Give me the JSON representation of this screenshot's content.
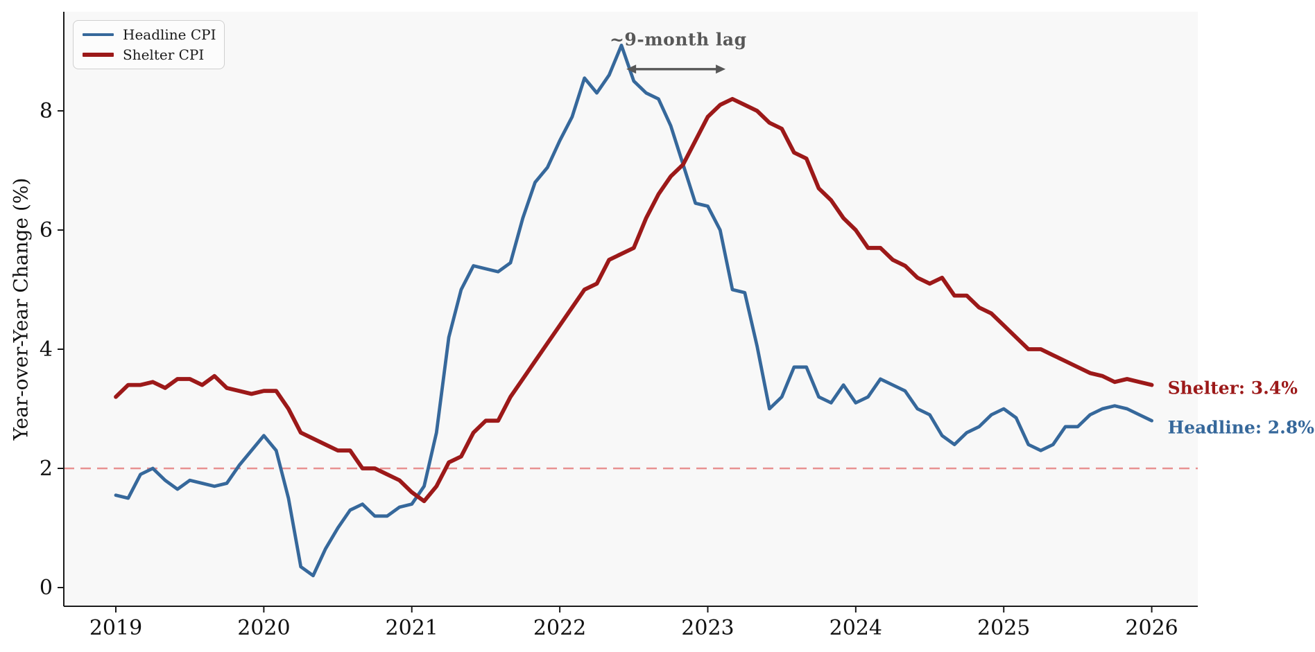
{
  "figure": {
    "background": "#ffffff",
    "plot_background": "#f8f8f8"
  },
  "colors": {
    "headline": "#36689b",
    "shelter": "#9c1919",
    "target_line": "#e89191",
    "annotation": "#575757",
    "axis": "#1a1a1a",
    "tick_text": "#111111"
  },
  "y_axis": {
    "label": "Year-over-Year Change (%)",
    "ticks": [
      "0",
      "2",
      "4",
      "6",
      "8"
    ]
  },
  "x_axis": {
    "ticks": [
      "2019",
      "2020",
      "2021",
      "2022",
      "2023",
      "2024",
      "2025",
      "2026"
    ]
  },
  "legend": {
    "items": [
      {
        "label": "Headline CPI",
        "series": "headline"
      },
      {
        "label": "Shelter CPI",
        "series": "shelter"
      }
    ]
  },
  "annotation": {
    "text": "~9-month lag"
  },
  "end_labels": [
    {
      "text": "Shelter: 3.4%",
      "series": "shelter"
    },
    {
      "text": "Headline: 2.8%",
      "series": "headline"
    }
  ],
  "chart_data": {
    "type": "line",
    "title": "",
    "xlabel": "",
    "ylabel": "Year-over-Year Change (%)",
    "frequency": "monthly",
    "x_start": "2019-01",
    "x_end": "2026-01",
    "x_tick_labels": [
      2019,
      2020,
      2021,
      2022,
      2023,
      2024,
      2025,
      2026
    ],
    "y_ticks": [
      0,
      2,
      4,
      6,
      8
    ],
    "ylim": [
      -0.31,
      9.66
    ],
    "grid": false,
    "legend_position": "upper left",
    "reference_line": {
      "y": 2.0,
      "style": "dashed"
    },
    "annotation": {
      "text": "~9-month lag",
      "arrow_x_from": 2022.45,
      "arrow_x_to": 2023.12,
      "arrow_y": 8.7,
      "label_x": 2022.8,
      "label_y": 9.2,
      "peak_headline": {
        "x": "2022-06",
        "y": 9.1
      },
      "peak_shelter": {
        "x": "2023-03",
        "y": 8.2
      }
    },
    "series": [
      {
        "name": "Headline CPI",
        "color": "#36689b",
        "last_value": 2.8,
        "values": [
          1.55,
          1.5,
          1.9,
          2.0,
          1.8,
          1.65,
          1.8,
          1.75,
          1.7,
          1.75,
          2.05,
          2.3,
          2.55,
          2.3,
          1.5,
          0.35,
          0.2,
          0.65,
          1.0,
          1.3,
          1.4,
          1.2,
          1.2,
          1.35,
          1.4,
          1.7,
          2.6,
          4.2,
          5.0,
          5.4,
          5.35,
          5.3,
          5.45,
          6.2,
          6.8,
          7.05,
          7.5,
          7.9,
          8.55,
          8.3,
          8.6,
          9.1,
          8.5,
          8.3,
          8.2,
          7.75,
          7.1,
          6.45,
          6.4,
          6.0,
          5.0,
          4.95,
          4.05,
          3.0,
          3.2,
          3.7,
          3.7,
          3.2,
          3.1,
          3.4,
          3.1,
          3.2,
          3.5,
          3.4,
          3.3,
          3.0,
          2.9,
          2.55,
          2.4,
          2.6,
          2.7,
          2.9,
          3.0,
          2.85,
          2.4,
          2.3,
          2.4,
          2.7,
          2.7,
          2.9,
          3.0,
          3.05,
          3.0,
          2.9,
          2.8
        ]
      },
      {
        "name": "Shelter CPI",
        "color": "#9c1919",
        "last_value": 3.4,
        "values": [
          3.2,
          3.4,
          3.4,
          3.45,
          3.35,
          3.5,
          3.5,
          3.4,
          3.55,
          3.35,
          3.3,
          3.25,
          3.3,
          3.3,
          3.0,
          2.6,
          2.5,
          2.4,
          2.3,
          2.3,
          2.0,
          2.0,
          1.9,
          1.8,
          1.6,
          1.45,
          1.7,
          2.1,
          2.2,
          2.6,
          2.8,
          2.8,
          3.2,
          3.5,
          3.8,
          4.1,
          4.4,
          4.7,
          5.0,
          5.1,
          5.5,
          5.6,
          5.7,
          6.2,
          6.6,
          6.9,
          7.1,
          7.5,
          7.9,
          8.1,
          8.2,
          8.1,
          8.0,
          7.8,
          7.7,
          7.3,
          7.2,
          6.7,
          6.5,
          6.2,
          6.0,
          5.7,
          5.7,
          5.5,
          5.4,
          5.2,
          5.1,
          5.2,
          4.9,
          4.9,
          4.7,
          4.6,
          4.4,
          4.2,
          4.0,
          4.0,
          3.9,
          3.8,
          3.7,
          3.6,
          3.55,
          3.45,
          3.5,
          3.45,
          3.4
        ]
      }
    ]
  }
}
